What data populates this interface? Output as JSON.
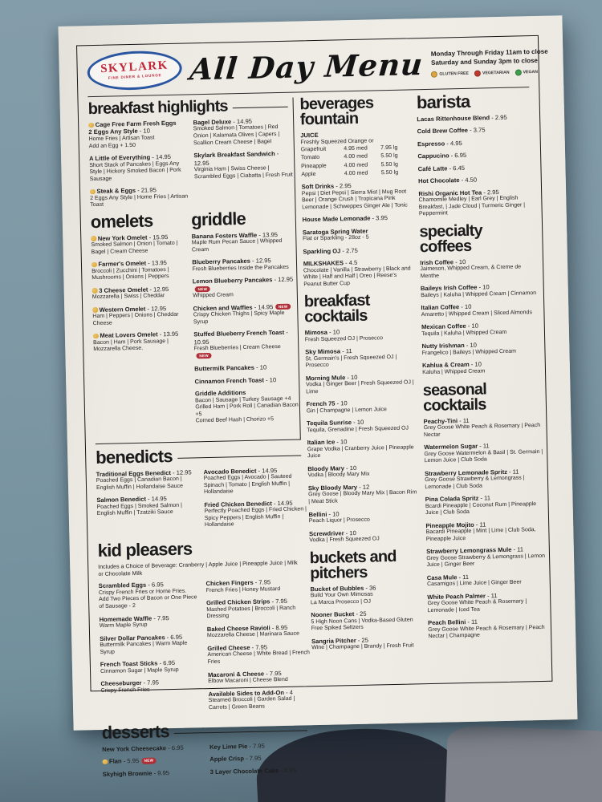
{
  "colors": {
    "table_top": "#849daa",
    "paper": "#edeae3",
    "ink": "#1b1b1b",
    "logo_red": "#c1273a",
    "logo_blue": "#2a55a0",
    "badge_red": "#b02e35",
    "gluten_free": "#dba63f",
    "vegetarian": "#c0392b",
    "vegan": "#3f9e4d"
  },
  "header": {
    "logo_name": "SKYLARK",
    "logo_tagline": "FINE DINER & LOUNGE",
    "title": "All Day Menu",
    "hours_line1": "Monday Through Friday 11am to close",
    "hours_line2": "Saturday and Sunday 3pm to close",
    "legend": [
      {
        "label": "GLUTEN FREE",
        "color": "#dba63f"
      },
      {
        "label": "VEGETARIAN",
        "color": "#c0392b"
      },
      {
        "label": "VEGAN",
        "color": "#3f9e4d"
      }
    ]
  },
  "sections": {
    "breakfast_highlights": {
      "title": "breakfast highlights",
      "col1": [
        {
          "gf": true,
          "name": "Cage Free Farm Fresh Eggs",
          "name2": "2 Eggs Any Style",
          "price": "10",
          "desc": [
            "Home Fries | Artisan Toast",
            "Add an Egg + 1.50"
          ]
        },
        {
          "name": "A Little of Everything",
          "price": "14.95",
          "desc": [
            "Short Stack of Pancakes | Eggs Any Style | Hickory Smoked Bacon | Pork Sausage"
          ]
        },
        {
          "gf": true,
          "name": "Steak & Eggs",
          "price": "21.95",
          "desc": [
            "2 Eggs Any Style | Home Fries | Artisan Toast"
          ]
        }
      ],
      "col2": [
        {
          "name": "Bagel Deluxe",
          "price": "14.95",
          "desc": [
            "Smoked Salmon | Tomatoes | Red Onion | Kalamata Olives | Capers | Scallion Cream Cheese | Bagel"
          ]
        },
        {
          "name": "Skylark Breakfast Sandwich",
          "price": "12.95",
          "desc": [
            "Virginia Ham | Swiss Cheese | Scrambled Eggs | Ciabatta | Fresh Fruit"
          ]
        }
      ]
    },
    "omelets": {
      "title": "omelets",
      "items": [
        {
          "gf": true,
          "name": "New York Omelet",
          "price": "15.95",
          "desc": [
            "Smoked Salmon | Onion | Tomato | Bagel | Cream Cheese"
          ]
        },
        {
          "gf": true,
          "name": "Farmer's Omelet",
          "price": "13.95",
          "desc": [
            "Broccoli | Zucchini | Tomatoes | Mushrooms | Onions | Peppers"
          ]
        },
        {
          "gf": true,
          "name": "3 Cheese Omelet",
          "price": "12.95",
          "desc": [
            "Mozzarella | Swiss | Cheddar"
          ]
        },
        {
          "gf": true,
          "name": "Western Omelet",
          "price": "12.95",
          "desc": [
            "Ham | Peppers | Onions | Cheddar Cheese"
          ]
        },
        {
          "gf": true,
          "name": "Meat Lovers Omelet",
          "price": "13.95",
          "desc": [
            "Bacon | Ham | Pork Sausage | Mozzarella Cheese."
          ]
        }
      ]
    },
    "griddle": {
      "title": "griddle",
      "items": [
        {
          "name": "Banana Fosters Waffle",
          "price": "13.95",
          "desc": [
            "Maple Rum Pecan Sauce | Whipped Cream"
          ]
        },
        {
          "name": "Blueberry Pancakes",
          "price": "12.95",
          "desc": [
            "Fresh Blueberries Inside the Pancakes"
          ]
        },
        {
          "name": "Lemon Blueberry Pancakes",
          "price": "12.95",
          "badge": "NEW",
          "desc": [
            "Whipped Cream"
          ]
        },
        {
          "name": "Chicken and Waffles",
          "price": "14.95",
          "badge": "NEW",
          "desc": [
            "Crispy Chicken Thighs | Spicy Maple Syrup"
          ]
        },
        {
          "name": "Stuffed Blueberry French Toast",
          "price": "10.95",
          "desc": [
            "Fresh Blueberries | Cream Cheese"
          ],
          "desc_badge": "NEW"
        },
        {
          "name": "Buttermilk Pancakes",
          "price": "10"
        },
        {
          "name": "Cinnamon French Toast",
          "price": "10"
        },
        {
          "name": "Griddle Additions",
          "desc": [
            "Bacon | Sausage | Turkey Sausage +4",
            "Grilled Ham | Pork Roll | Canadian Bacon +5",
            "Corned Beef Hash | Chorizo +5"
          ]
        }
      ]
    },
    "benedicts": {
      "title": "benedicts",
      "col1": [
        {
          "name": "Traditional Eggs Benedict",
          "price": "12.95",
          "desc": [
            "Poached Eggs | Canadian Bacon | English Muffin | Hollandaise Sauce"
          ]
        },
        {
          "name": "Salmon Benedict",
          "price": "14.95",
          "desc": [
            "Poached Eggs | Smoked Salmon | English Muffin | Tzatziki Sauce"
          ]
        }
      ],
      "col2": [
        {
          "name": "Avocado Benedict",
          "price": "14.95",
          "desc": [
            "Poached Eggs | Avocado | Sauteed Spinach | Tomato | English Muffin | Hollandaise"
          ]
        },
        {
          "name": "Fried Chicken Benedict",
          "price": "14.95",
          "desc": [
            "Perfectly Poached Eggs | Fried Chicken | Spicy Peppers | English Muffin | Hollandaise"
          ]
        }
      ]
    },
    "kid_pleasers": {
      "title": "kid pleasers",
      "note": "Includes a Choice of Beverage: Cranberry | Apple Juice | Pineapple Juice | Milk or Chocolate Milk",
      "col1": [
        {
          "name": "Scrambled Eggs",
          "price": "6.95",
          "desc": [
            "Crispy French Fries or Home Fries.",
            "Add Two Pieces of Bacon or One Piece of Sausage - 2"
          ]
        },
        {
          "name": "Homemade Waffle",
          "price": "7.95",
          "desc": [
            "Warm Maple Syrup"
          ]
        },
        {
          "name": "Silver Dollar Pancakes",
          "price": "6.95",
          "desc": [
            "Buttermilk Pancakes | Warm Maple Syrup"
          ]
        },
        {
          "name": "French Toast Sticks",
          "price": "6.95",
          "desc": [
            "Cinnamon Sugar | Maple Syrup"
          ]
        },
        {
          "name": "Cheeseburger",
          "price": "7.95",
          "desc": [
            "Crispy French Fries"
          ]
        }
      ],
      "col2": [
        {
          "name": "Chicken Fingers",
          "price": "7.95",
          "desc": [
            "French Fries | Honey Mustard"
          ]
        },
        {
          "name": "Grilled Chicken Strips",
          "price": "7.95",
          "desc": [
            "Mashed Potatoes | Broccoli | Ranch Dressing"
          ]
        },
        {
          "name": "Baked Cheese Ravioli",
          "price": "8.95",
          "desc": [
            "Mozzarella Cheese | Marinara Sauce"
          ]
        },
        {
          "name": "Grilled Cheese",
          "price": "7.95",
          "desc": [
            "American Cheese | White Bread | French Fries"
          ]
        },
        {
          "name": "Macaroni & Cheese",
          "price": "7.95",
          "desc": [
            "Elbow Macaroni | Cheese Blend"
          ]
        },
        {
          "name": "Available Sides to Add-On",
          "price": "4",
          "desc": [
            "Steamed Broccoli | Garden Salad | Carrots | Green Beans"
          ]
        }
      ]
    },
    "desserts": {
      "title": "desserts",
      "col1": [
        {
          "name": "New York Cheesecake",
          "price": "6.95"
        },
        {
          "gf": true,
          "name": "Flan",
          "price": "5.95",
          "badge": "NEW"
        },
        {
          "name": "Skyhigh Brownie",
          "price": "9.95"
        }
      ],
      "col2": [
        {
          "name": "Key Lime Pie",
          "price": "7.95"
        },
        {
          "name": "Apple Crisp",
          "price": "7.95"
        },
        {
          "name": "3 Layer Chocolate Cake",
          "price": "8.95"
        }
      ]
    },
    "beverages": {
      "title": "beverages\nfountain",
      "juice": {
        "header": "JUICE",
        "intro": "Freshly Squeezed Orange or",
        "rows": [
          [
            "Grapefruit",
            "4.95 med",
            "7.95 lg"
          ],
          [
            "Tomato",
            "4.00 med",
            "5.50 lg"
          ],
          [
            "Pineapple",
            "4.00 med",
            "5.50 lg"
          ],
          [
            "Apple",
            "4.00 med",
            "5.50 lg"
          ]
        ]
      },
      "items": [
        {
          "name": "Soft Drinks",
          "price": "2.95",
          "desc": [
            "Pepsi | Diet Pepsi | Sierra Mist | Mug Root Beer | Orange Crush | Tropicana Pink Lemonade | Schweppes Ginger Ale | Tonic"
          ]
        },
        {
          "name": "House Made Lemonade",
          "price": "3.95"
        },
        {
          "name": "Saratoga Spring Water",
          "desc": [
            "Flat or Sparkling - 28oz - 5"
          ]
        },
        {
          "name": "Sparkling OJ",
          "price": "2.75"
        },
        {
          "name": "MILKSHAKES",
          "price": "4.5",
          "desc": [
            "Chocolate | Vanilla | Strawberry | Black and White | Half and Half | Oreo | Reese's Peanut Butter Cup"
          ]
        }
      ]
    },
    "breakfast_cocktails": {
      "title": "breakfast\ncocktails",
      "items": [
        {
          "name": "Mimosa",
          "price": "10",
          "desc": [
            "Fresh Squeezed OJ | Prosecco"
          ]
        },
        {
          "name": "Sky Mimosa",
          "price": "11",
          "desc": [
            "St. Germain's | Fresh Squeezed OJ | Prosecco"
          ]
        },
        {
          "name": "Morning Mule",
          "price": "10",
          "desc": [
            "Vodka | Ginger Beer | Fresh Squeezed OJ | Lime"
          ]
        },
        {
          "name": "French 75",
          "price": "10",
          "desc": [
            "Gin | Champagne | Lemon Juice"
          ]
        },
        {
          "name": "Tequila Sunrise",
          "price": "10",
          "desc": [
            "Tequila, Grenadine | Fresh Squeezed OJ"
          ]
        },
        {
          "name": "Italian Ice",
          "price": "10",
          "desc": [
            "Grape Vodka | Cranberry Juice | Pineapple Juice"
          ]
        },
        {
          "name": "Bloody Mary",
          "price": "10",
          "desc": [
            "Vodka | Bloody Mary Mix"
          ]
        },
        {
          "name": "Sky Bloody Mary",
          "price": "12",
          "desc": [
            "Grey Goose | Bloody Mary Mix | Bacon Rim | Meat Stick"
          ]
        },
        {
          "name": "Bellini",
          "price": "10",
          "desc": [
            "Peach Liquor | Prosecco"
          ]
        },
        {
          "name": "Screwdriver",
          "price": "10",
          "desc": [
            "Vodka | Fresh Squeezed OJ"
          ]
        }
      ]
    },
    "buckets_pitchers": {
      "title": "buckets and\npitchers",
      "items": [
        {
          "name": "Bucket of Bubbles",
          "price": "36",
          "desc": [
            "Build Your Own Mimosas",
            "La Marca Prosecco | OJ"
          ]
        },
        {
          "name": "Nooner Bucket",
          "price": "25",
          "desc": [
            "5 High Noon Cans | Vodka-Based Gluten Free Spiked Seltzers"
          ]
        },
        {
          "name": "Sangria Pitcher",
          "price": "25",
          "desc": [
            "Wine | Champagne | Brandy | Fresh Fruit"
          ]
        }
      ]
    },
    "barista": {
      "title": "barista",
      "items": [
        {
          "name": "Lacas Rittenhouse Blend",
          "price": "2.95"
        },
        {
          "name": "Cold Brew Coffee",
          "price": "3.75"
        },
        {
          "name": "Espresso",
          "price": "4.95"
        },
        {
          "name": "Cappucino",
          "price": "6.95"
        },
        {
          "name": "Café Latte",
          "price": "6.45"
        },
        {
          "name": "Hot Chocolate",
          "price": "4.50"
        },
        {
          "name": "Rishi Organic Hot Tea",
          "price": "2.95",
          "desc": [
            "Chamomile Medley | Earl Grey | English Breakfast, | Jade Cloud | Turmeric Ginger | Peppermint"
          ]
        }
      ]
    },
    "specialty_coffees": {
      "title": "specialty\ncoffees",
      "items": [
        {
          "name": "Irish Coffee",
          "price": "10",
          "desc": [
            "Jaimeson, Whipped Cream, & Creme de Menthe"
          ]
        },
        {
          "name": "Baileys Irish Coffee",
          "price": "10",
          "desc": [
            "Baileys | Kaluha | Whipped Cream | Cinnamon"
          ]
        },
        {
          "name": "Italian Coffee",
          "price": "10",
          "desc": [
            "Amaretto | Whipped Cream | Sliced Almonds"
          ]
        },
        {
          "name": "Mexican Coffee",
          "price": "10",
          "desc": [
            "Tequila | Kaluha | Whipped Cream"
          ]
        },
        {
          "name": "Nutty Irishman",
          "price": "10",
          "desc": [
            "Frangelico | Baileys | Whipped Cream"
          ]
        },
        {
          "name": "Kahlua & Cream",
          "price": "10",
          "desc": [
            "Kaluha | Whipped Cream"
          ]
        }
      ]
    },
    "seasonal_cocktails": {
      "title": "seasonal\ncocktails",
      "items": [
        {
          "name": "Peachy-Tini",
          "price": "11",
          "desc": [
            "Grey Goose White Peach & Rosemary | Peach Nectar"
          ]
        },
        {
          "name": "Watermelon Sugar",
          "price": "11",
          "desc": [
            "Grey Goose Watermelon & Basil | St. Germain | Lemon Juice | Club Soda"
          ]
        },
        {
          "name": "Strawberry Lemonade Spritz",
          "price": "11",
          "desc": [
            "Grey Goose Strawberry & Lemongrass | Lemonade | Club Soda"
          ]
        },
        {
          "name": "Pina Colada Spritz",
          "price": "11",
          "desc": [
            "Bcardi Pineapple | Coconut Rum | Pineapple Juice | Club Soda"
          ]
        },
        {
          "name": "Pineapple Mojito",
          "price": "11",
          "desc": [
            "Bacardi Pineapple | Mint | Lime | Club Soda, Pineapple Juice"
          ]
        },
        {
          "name": "Strawberry Lemongrass Mule",
          "price": "11",
          "desc": [
            "Grey Goose Strawberry & Lemongrass | Lemon Juice | Ginger Beer"
          ]
        },
        {
          "name": "Casa Mule",
          "price": "11",
          "desc": [
            "Casamigos | Lime Juice | Ginger Beer"
          ]
        },
        {
          "name": "White Peach Palmer",
          "price": "11",
          "desc": [
            "Grey Goose White Peach & Rosemary | Lemonade | Iced Tea"
          ]
        },
        {
          "name": "Peach Bellini",
          "price": "11",
          "desc": [
            "Grey Goose White Peach & Rosemary | Peach Nectar | Champagne"
          ]
        }
      ]
    }
  }
}
